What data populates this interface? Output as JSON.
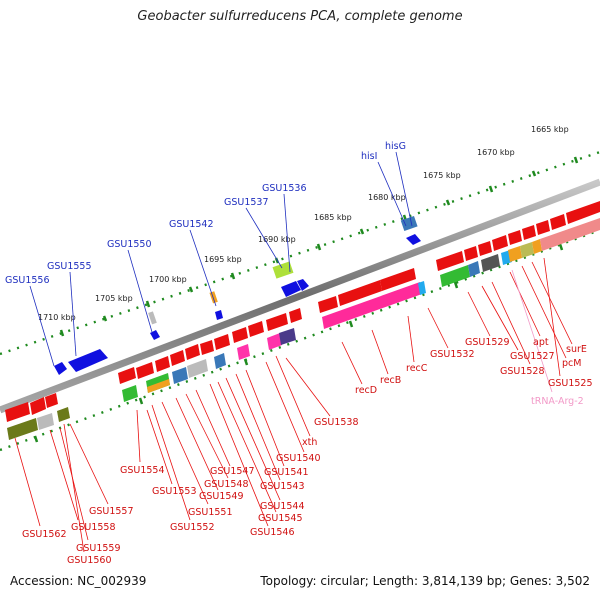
{
  "title": "Geobacter sulfurreducens PCA, complete genome",
  "footer": {
    "accession": "Accession: NC_002939",
    "info": "Topology: circular; Length: 3,814,139 bp; Genes: 3,502"
  },
  "kbp_ticks": [
    "1710 kbp",
    "1705 kbp",
    "1700 kbp",
    "1695 kbp",
    "1690 kbp",
    "1685 kbp",
    "1680 kbp",
    "1675 kbp",
    "1670 kbp",
    "1665 kbp"
  ],
  "top_labels": [
    "GSU1556",
    "GSU1555",
    "GSU1550",
    "GSU1542",
    "GSU1537",
    "GSU1536",
    "hisI",
    "hisG"
  ],
  "bottom_labels": [
    "GSU1562",
    "GSU1558",
    "GSU1559",
    "GSU1560",
    "GSU1557",
    "GSU1554",
    "GSU1553",
    "GSU1552",
    "GSU1551",
    "GSU1549",
    "GSU1548",
    "GSU1547",
    "GSU1546",
    "GSU1545",
    "GSU1544",
    "GSU1543",
    "GSU1541",
    "GSU1540",
    "xth",
    "GSU1538",
    "recD",
    "recB",
    "recC",
    "GSU1532",
    "GSU1529",
    "GSU1527",
    "GSU1528",
    "apt",
    "pcM",
    "surE",
    "GSU1525",
    "tRNA-Arg-2"
  ],
  "colors": {
    "forward_gene": "#1010e0",
    "reverse_gene": "#e81010",
    "label_blue": "#1f2fbf",
    "label_red": "#d01010",
    "label_pink": "#f29ac8",
    "backbone": "#7a7a7a",
    "tick_green": "#1f8a1f"
  }
}
